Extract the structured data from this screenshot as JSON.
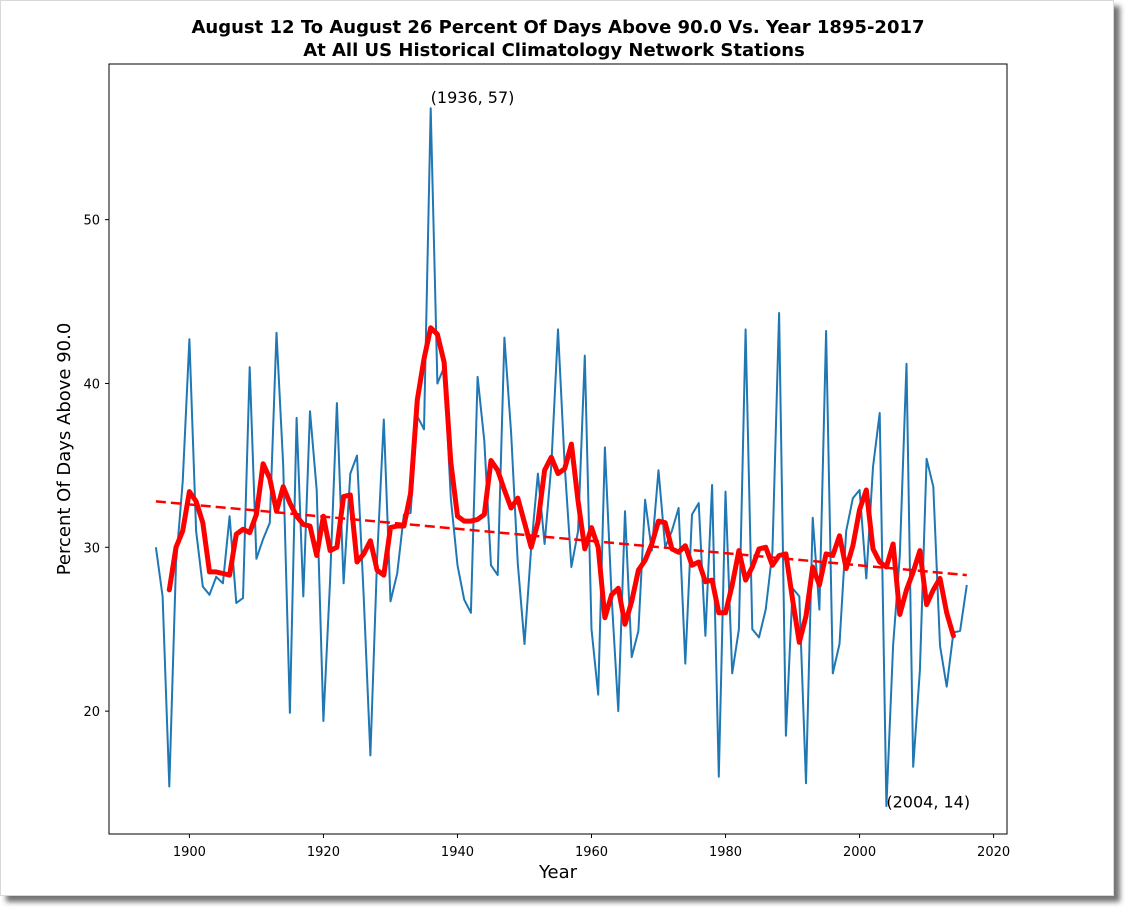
{
  "chart_data": {
    "type": "line",
    "title": "August 12 To August 26 Percent Of Days Above 90.0 Vs. Year 1895-2017",
    "subtitle": "At All US Historical Climatology Network Stations",
    "xlabel": "Year",
    "ylabel": "Percent Of Days Above 90.0",
    "xlim": [
      1888,
      2022
    ],
    "ylim": [
      12.5,
      59.5
    ],
    "xticks": [
      1900,
      1920,
      1940,
      1960,
      1980,
      2000,
      2020
    ],
    "yticks": [
      20,
      30,
      40,
      50
    ],
    "grid": false,
    "colors": {
      "raw": "#1f77b4",
      "smooth": "#ff0000",
      "trend": "#ff0000"
    },
    "annotations": [
      {
        "text": "(1936, 57)",
        "x": 1936,
        "y": 57
      },
      {
        "text": "(2004, 14)",
        "x": 2004,
        "y": 14
      }
    ],
    "series": [
      {
        "style": "thin-line",
        "x": [
          1895,
          1896,
          1897,
          1898,
          1899,
          1900,
          1901,
          1902,
          1903,
          1904,
          1905,
          1906,
          1907,
          1908,
          1909,
          1910,
          1911,
          1912,
          1913,
          1914,
          1915,
          1916,
          1917,
          1918,
          1919,
          1920,
          1921,
          1922,
          1923,
          1924,
          1925,
          1926,
          1927,
          1928,
          1929,
          1930,
          1931,
          1932,
          1933,
          1934,
          1935,
          1936,
          1937,
          1938,
          1939,
          1940,
          1941,
          1942,
          1943,
          1944,
          1945,
          1946,
          1947,
          1948,
          1949,
          1950,
          1951,
          1952,
          1953,
          1954,
          1955,
          1956,
          1957,
          1958,
          1959,
          1960,
          1961,
          1962,
          1963,
          1964,
          1965,
          1966,
          1967,
          1968,
          1969,
          1970,
          1971,
          1972,
          1973,
          1974,
          1975,
          1976,
          1977,
          1978,
          1979,
          1980,
          1981,
          1982,
          1983,
          1984,
          1985,
          1986,
          1987,
          1988,
          1989,
          1990,
          1991,
          1992,
          1993,
          1994,
          1995,
          1996,
          1997,
          1998,
          1999,
          2000,
          2001,
          2002,
          2003,
          2004,
          2005,
          2006,
          2007,
          2008,
          2009,
          2010,
          2011,
          2012,
          2013,
          2014,
          2015,
          2016
        ],
        "values": [
          30.0,
          27.0,
          15.4,
          29.0,
          34.0,
          42.7,
          31.0,
          27.6,
          27.1,
          28.2,
          27.8,
          31.9,
          26.6,
          26.9,
          41.0,
          29.3,
          30.5,
          31.5,
          43.1,
          35.0,
          19.9,
          37.9,
          27.0,
          38.3,
          33.5,
          19.4,
          28.0,
          38.8,
          27.8,
          34.5,
          35.6,
          27.0,
          17.3,
          29.3,
          37.8,
          26.7,
          28.4,
          32.0,
          32.1,
          38.0,
          37.2,
          56.8,
          40.0,
          41.0,
          33.0,
          28.9,
          26.8,
          26.0,
          40.4,
          36.5,
          28.9,
          28.3,
          42.8,
          37.0,
          29.0,
          24.1,
          30.0,
          34.5,
          30.2,
          35.0,
          43.3,
          35.0,
          28.8,
          31.0,
          41.7,
          25.0,
          21.0,
          36.1,
          27.0,
          20.0,
          32.2,
          23.3,
          24.9,
          32.9,
          29.8,
          34.7,
          30.0,
          31.0,
          32.4,
          22.9,
          32.0,
          32.7,
          24.6,
          33.8,
          16.0,
          33.4,
          22.3,
          25.0,
          43.3,
          25.0,
          24.5,
          26.2,
          29.7,
          44.3,
          18.5,
          27.5,
          27.0,
          15.6,
          31.8,
          26.2,
          43.2,
          22.3,
          24.1,
          31.0,
          33.0,
          33.5,
          28.1,
          34.9,
          38.2,
          14.2,
          24.0,
          29.5,
          41.2,
          16.6,
          22.5,
          35.4,
          33.7,
          24.0,
          21.5,
          24.8,
          24.9,
          27.7
        ]
      },
      {
        "style": "thick-line",
        "x": [
          1897,
          1898,
          1899,
          1900,
          1901,
          1902,
          1903,
          1904,
          1905,
          1906,
          1907,
          1908,
          1909,
          1910,
          1911,
          1912,
          1913,
          1914,
          1915,
          1916,
          1917,
          1918,
          1919,
          1920,
          1921,
          1922,
          1923,
          1924,
          1925,
          1926,
          1927,
          1928,
          1929,
          1930,
          1931,
          1932,
          1933,
          1934,
          1935,
          1936,
          1937,
          1938,
          1939,
          1940,
          1941,
          1942,
          1943,
          1944,
          1945,
          1946,
          1947,
          1948,
          1949,
          1950,
          1951,
          1952,
          1953,
          1954,
          1955,
          1956,
          1957,
          1958,
          1959,
          1960,
          1961,
          1962,
          1963,
          1964,
          1965,
          1966,
          1967,
          1968,
          1969,
          1970,
          1971,
          1972,
          1973,
          1974,
          1975,
          1976,
          1977,
          1978,
          1979,
          1980,
          1981,
          1982,
          1983,
          1984,
          1985,
          1986,
          1987,
          1988,
          1989,
          1990,
          1991,
          1992,
          1993,
          1994,
          1995,
          1996,
          1997,
          1998,
          1999,
          2000,
          2001,
          2002,
          2003,
          2004,
          2005,
          2006,
          2007,
          2008,
          2009,
          2010,
          2011,
          2012,
          2013,
          2014
        ],
        "values": [
          27.4,
          30.0,
          31.0,
          33.4,
          32.8,
          31.5,
          28.5,
          28.5,
          28.4,
          28.3,
          30.8,
          31.1,
          30.9,
          32.0,
          35.1,
          34.2,
          32.2,
          33.7,
          32.7,
          31.9,
          31.4,
          31.3,
          29.5,
          31.9,
          29.8,
          30.0,
          33.1,
          33.2,
          29.1,
          29.6,
          30.4,
          28.6,
          28.3,
          31.2,
          31.3,
          31.3,
          33.3,
          39.0,
          41.5,
          43.4,
          43.0,
          41.3,
          35.2,
          31.9,
          31.6,
          31.6,
          31.7,
          32.0,
          35.3,
          34.7,
          33.5,
          32.4,
          33.0,
          31.5,
          30.0,
          31.5,
          34.7,
          35.5,
          34.5,
          34.8,
          36.3,
          32.8,
          29.9,
          31.2,
          30.0,
          25.7,
          27.1,
          27.5,
          25.3,
          26.7,
          28.6,
          29.2,
          30.2,
          31.6,
          31.5,
          29.9,
          29.7,
          30.1,
          28.9,
          29.1,
          27.9,
          28.0,
          26.0,
          26.0,
          27.7,
          29.8,
          28.0,
          28.8,
          29.9,
          30.0,
          28.9,
          29.5,
          29.6,
          26.8,
          24.2,
          25.8,
          28.8,
          27.7,
          29.6,
          29.5,
          30.7,
          28.7,
          30.1,
          32.3,
          33.5,
          29.9,
          29.1,
          28.8,
          30.2,
          25.9,
          27.4,
          28.5,
          29.8,
          26.5,
          27.4,
          28.1,
          26.0,
          24.6
        ]
      },
      {
        "style": "dashed-line",
        "x": [
          1895,
          2016
        ],
        "values": [
          32.8,
          28.3
        ]
      }
    ]
  }
}
